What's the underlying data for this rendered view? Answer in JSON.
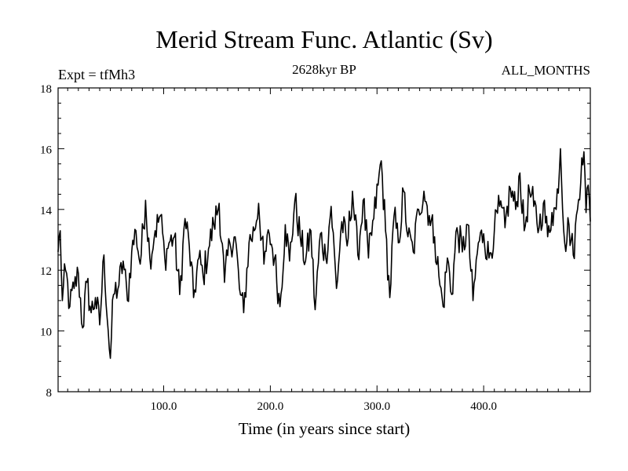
{
  "chart_data": {
    "type": "line",
    "title": "Merid Stream Func. Atlantic (Sv)",
    "subtitle_left": "Expt = tfMh3",
    "subtitle_center": "2628kyr BP",
    "subtitle_right": "ALL_MONTHS",
    "xlabel": "Time (in years since start)",
    "ylabel": "",
    "xlim": [
      1,
      500
    ],
    "ylim": [
      8,
      18
    ],
    "x_ticks": [
      100,
      200,
      300,
      400
    ],
    "x_tick_labels": [
      "100.0",
      "200.0",
      "300.0",
      "400.0"
    ],
    "y_ticks": [
      8,
      10,
      12,
      14,
      16,
      18
    ],
    "y_tick_labels": [
      "8",
      "10",
      "12",
      "14",
      "16",
      "18"
    ],
    "x_minor_step": 10,
    "y_minor_step": 0.5,
    "grid": false,
    "series": [
      {
        "name": "Merid Stream Func. Atlantic",
        "color": "#000000",
        "x_start": 1,
        "x_step": 1,
        "anchors": [
          [
            1,
            12.6
          ],
          [
            3,
            13.3
          ],
          [
            5,
            11.0
          ],
          [
            8,
            12.0
          ],
          [
            12,
            10.8
          ],
          [
            16,
            11.4
          ],
          [
            20,
            11.9
          ],
          [
            24,
            10.1
          ],
          [
            28,
            11.6
          ],
          [
            32,
            10.6
          ],
          [
            36,
            11.1
          ],
          [
            40,
            10.2
          ],
          [
            44,
            12.5
          ],
          [
            48,
            10.0
          ],
          [
            50,
            9.1
          ],
          [
            53,
            11.2
          ],
          [
            58,
            11.5
          ],
          [
            62,
            12.3
          ],
          [
            66,
            11.0
          ],
          [
            70,
            12.6
          ],
          [
            74,
            13.3
          ],
          [
            78,
            12.2
          ],
          [
            83,
            14.3
          ],
          [
            87,
            12.4
          ],
          [
            92,
            13.3
          ],
          [
            97,
            13.8
          ],
          [
            101,
            12.4
          ],
          [
            105,
            12.9
          ],
          [
            110,
            13.1
          ],
          [
            115,
            11.2
          ],
          [
            120,
            13.7
          ],
          [
            124,
            12.8
          ],
          [
            128,
            11.1
          ],
          [
            133,
            12.4
          ],
          [
            137,
            11.8
          ],
          [
            142,
            12.7
          ],
          [
            147,
            13.5
          ],
          [
            152,
            14.2
          ],
          [
            157,
            11.6
          ],
          [
            162,
            12.9
          ],
          [
            167,
            13.1
          ],
          [
            171,
            11.4
          ],
          [
            175,
            10.6
          ],
          [
            180,
            12.9
          ],
          [
            185,
            13.3
          ],
          [
            189,
            14.2
          ],
          [
            194,
            12.2
          ],
          [
            199,
            13.2
          ],
          [
            204,
            12.4
          ],
          [
            209,
            10.8
          ],
          [
            214,
            13.5
          ],
          [
            218,
            12.3
          ],
          [
            223,
            14.3
          ],
          [
            228,
            13.1
          ],
          [
            233,
            12.3
          ],
          [
            238,
            13.3
          ],
          [
            242,
            10.7
          ],
          [
            247,
            13.2
          ],
          [
            252,
            12.4
          ],
          [
            257,
            14.1
          ],
          [
            262,
            11.4
          ],
          [
            267,
            13.6
          ],
          [
            272,
            12.8
          ],
          [
            277,
            14.6
          ],
          [
            282,
            12.5
          ],
          [
            287,
            14.3
          ],
          [
            292,
            12.4
          ],
          [
            297,
            13.7
          ],
          [
            301,
            14.8
          ],
          [
            304,
            15.6
          ],
          [
            308,
            13.3
          ],
          [
            312,
            11.1
          ],
          [
            316,
            13.8
          ],
          [
            320,
            12.9
          ],
          [
            325,
            14.6
          ],
          [
            329,
            13.1
          ],
          [
            334,
            12.6
          ],
          [
            339,
            14.0
          ],
          [
            344,
            14.6
          ],
          [
            349,
            13.8
          ],
          [
            354,
            13.1
          ],
          [
            359,
            11.5
          ],
          [
            362,
            10.8
          ],
          [
            366,
            12.4
          ],
          [
            370,
            11.2
          ],
          [
            375,
            13.4
          ],
          [
            380,
            12.6
          ],
          [
            385,
            13.5
          ],
          [
            390,
            11.0
          ],
          [
            395,
            12.9
          ],
          [
            400,
            13.2
          ],
          [
            405,
            12.4
          ],
          [
            410,
            13.3
          ],
          [
            415,
            14.1
          ],
          [
            420,
            13.4
          ],
          [
            425,
            14.7
          ],
          [
            430,
            14.0
          ],
          [
            434,
            15.2
          ],
          [
            438,
            13.3
          ],
          [
            443,
            14.6
          ],
          [
            447,
            14.1
          ],
          [
            452,
            13.4
          ],
          [
            456,
            14.2
          ],
          [
            460,
            13.1
          ],
          [
            464,
            13.9
          ],
          [
            468,
            14.0
          ],
          [
            472,
            16.0
          ],
          [
            476,
            12.9
          ],
          [
            480,
            13.5
          ],
          [
            484,
            12.5
          ],
          [
            488,
            14.0
          ],
          [
            492,
            15.7
          ],
          [
            494,
            15.9
          ],
          [
            496,
            13.9
          ],
          [
            498,
            14.8
          ],
          [
            500,
            13.6
          ]
        ]
      }
    ]
  }
}
